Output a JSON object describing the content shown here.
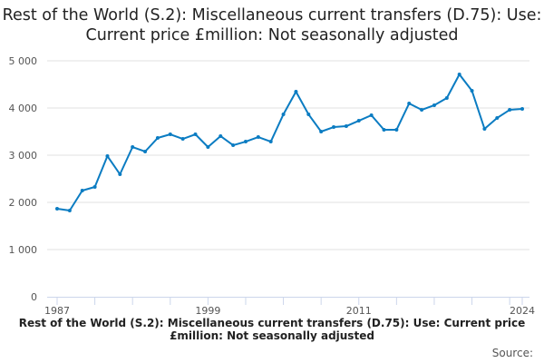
{
  "chart_data": {
    "type": "line",
    "title": "Rest of the World (S.2): Miscellaneous current transfers (D.75): Use: Current price £million: Not seasonally adjusted",
    "footer_title": "Rest of the World (S.2): Miscellaneous current transfers (D.75): Use: Current price £million: Not seasonally adjusted",
    "source_label": "Source:",
    "x": [
      1987,
      1988,
      1989,
      1990,
      1991,
      1992,
      1993,
      1994,
      1995,
      1996,
      1997,
      1998,
      1999,
      2000,
      2001,
      2002,
      2003,
      2004,
      2005,
      2006,
      2007,
      2008,
      2009,
      2010,
      2011,
      2012,
      2013,
      2014,
      2015,
      2016,
      2017,
      2018,
      2019,
      2020,
      2021,
      2022,
      2023,
      2024
    ],
    "values": [
      1865,
      1827,
      2250,
      2327,
      2980,
      2596,
      3173,
      3077,
      3365,
      3442,
      3346,
      3442,
      3173,
      3404,
      3211,
      3288,
      3384,
      3288,
      3865,
      4346,
      3865,
      3500,
      3596,
      3615,
      3730,
      3846,
      3538,
      3538,
      4096,
      3961,
      4058,
      4211,
      4712,
      4365,
      3558,
      3788,
      3961,
      3980
    ],
    "ylim": [
      0,
      5000
    ],
    "y_ticks": [
      "0",
      "1 000",
      "2 000",
      "3 000",
      "4 000",
      "5 000"
    ],
    "y_tick_values": [
      0,
      1000,
      2000,
      3000,
      4000,
      5000
    ],
    "x_tick_labels": [
      "1987",
      "1999",
      "2011",
      "2024"
    ],
    "grid": true,
    "line_color": "#0b7cc2",
    "grid_color": "#e0e0e0"
  }
}
